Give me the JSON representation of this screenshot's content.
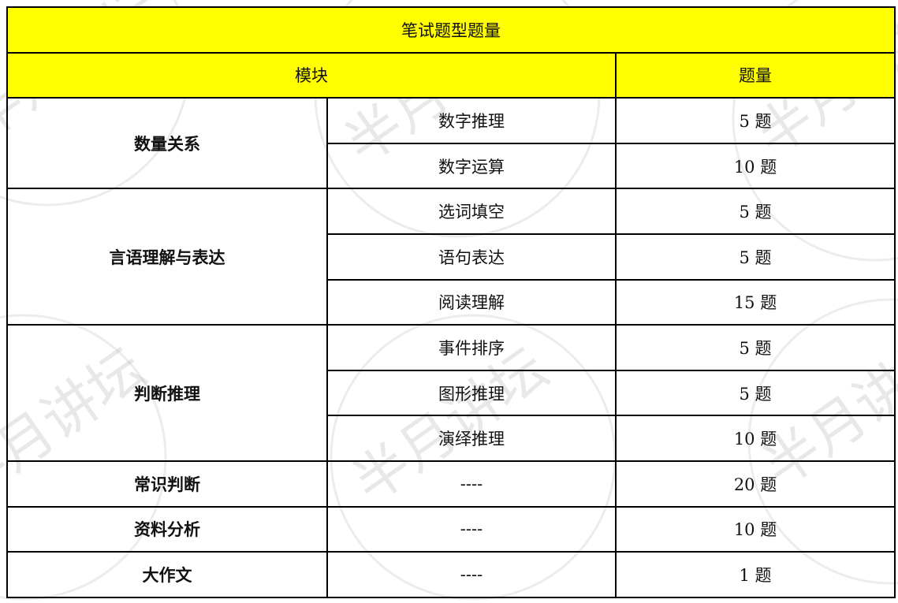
{
  "watermark": "半月讲坛",
  "table": {
    "title": "笔试题型题量",
    "headers": {
      "module": "模块",
      "count": "题量"
    },
    "groups": [
      {
        "module": "数量关系",
        "items": [
          {
            "sub": "数字推理",
            "count": "5 题"
          },
          {
            "sub": "数字运算",
            "count": "10 题"
          }
        ]
      },
      {
        "module": "言语理解与表达",
        "items": [
          {
            "sub": "选词填空",
            "count": "5 题"
          },
          {
            "sub": "语句表达",
            "count": "5 题"
          },
          {
            "sub": "阅读理解",
            "count": "15 题"
          }
        ]
      },
      {
        "module": "判断推理",
        "items": [
          {
            "sub": "事件排序",
            "count": "5 题"
          },
          {
            "sub": "图形推理",
            "count": "5 题"
          },
          {
            "sub": "演绎推理",
            "count": "10 题"
          }
        ]
      },
      {
        "module": "常识判断",
        "items": [
          {
            "sub": "----",
            "count": "20 题"
          }
        ]
      },
      {
        "module": "资料分析",
        "items": [
          {
            "sub": "----",
            "count": "10 题"
          }
        ]
      },
      {
        "module": "大作文",
        "items": [
          {
            "sub": "----",
            "count": "1 题"
          }
        ]
      }
    ]
  },
  "colors": {
    "header_bg": "#ffff00",
    "border": "#000000"
  }
}
